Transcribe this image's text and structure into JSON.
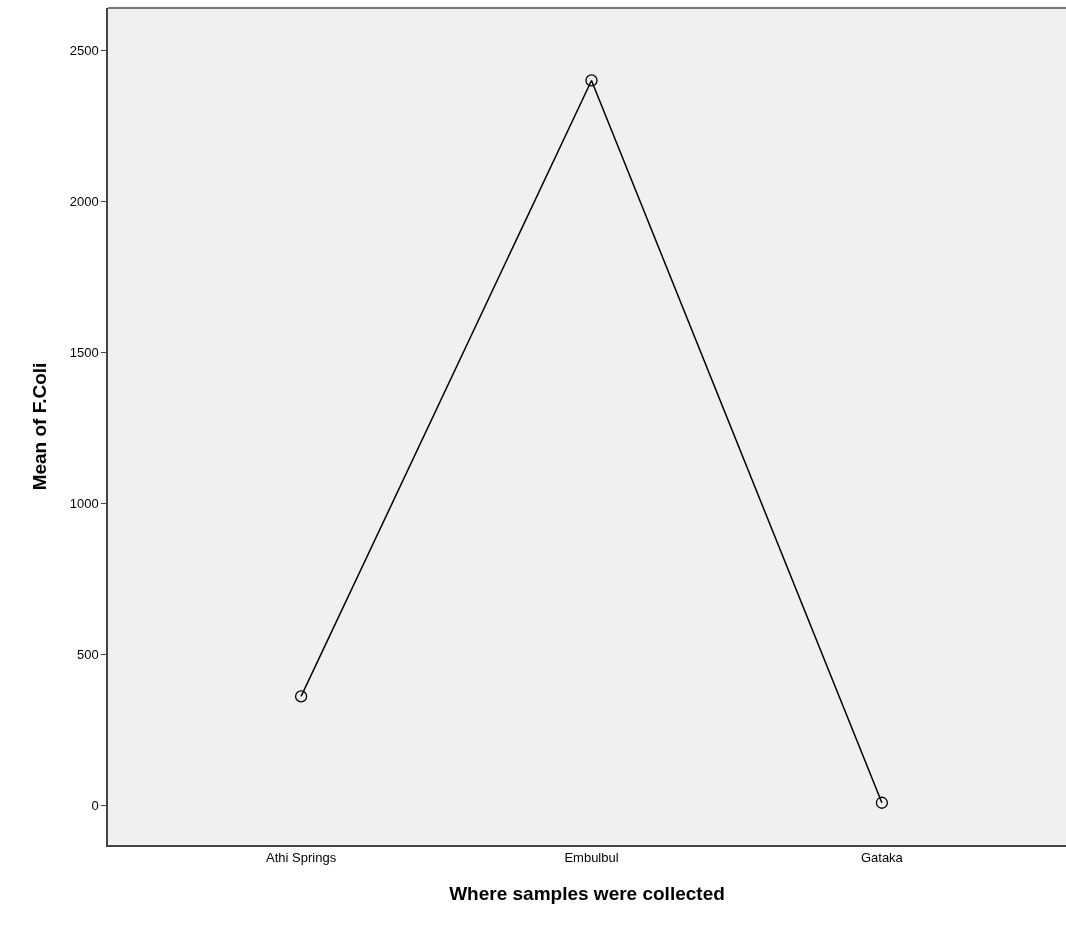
{
  "chart_data": {
    "type": "line",
    "xlabel": "Where samples were collected",
    "ylabel": "Mean of F.Coli",
    "categories": [
      "Athi Springs",
      "Embulbul",
      "Gataka"
    ],
    "series": [
      {
        "color": "#000000",
        "values": [
          360,
          2400,
          8
        ]
      }
    ],
    "ylim": [
      -132,
      2640
    ],
    "yticks": [
      0,
      500,
      1000,
      1500,
      2000,
      2500
    ],
    "grid": false,
    "marker": "circle",
    "line_style": "solid"
  }
}
